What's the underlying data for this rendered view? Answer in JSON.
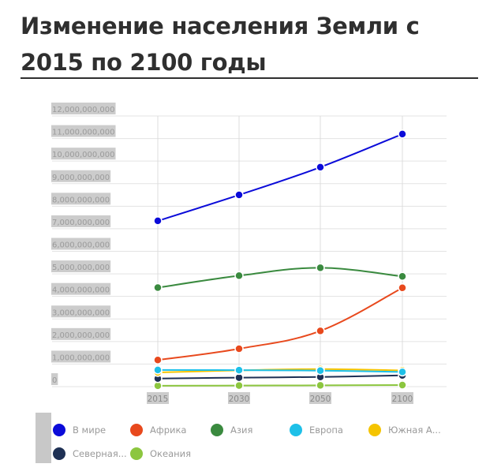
{
  "title": "Изменение населения Земли с 2015 по 2100 годы",
  "chart_data": {
    "type": "line",
    "title": "Изменение населения Земли с 2015 по 2100 годы",
    "categories": [
      "2015",
      "2030",
      "2050",
      "2100"
    ],
    "ylim": [
      0,
      12000000000
    ],
    "yticks": [
      "0",
      "1,000,000,000",
      "2,000,000,000",
      "3,000,000,000",
      "4,000,000,000",
      "5,000,000,000",
      "6,000,000,000",
      "7,000,000,000",
      "8,000,000,000",
      "9,000,000,000",
      "10,000,000,000",
      "11,000,000,000",
      "12,000,000,000"
    ],
    "grid": true,
    "legend_position": "bottom",
    "series": [
      {
        "name": "В мире",
        "color": "#0b0bd9",
        "values": [
          7350000000,
          8500000000,
          9730000000,
          11200000000
        ]
      },
      {
        "name": "Африка",
        "color": "#e8491d",
        "values": [
          1180000000,
          1680000000,
          2470000000,
          4380000000
        ]
      },
      {
        "name": "Азия",
        "color": "#3a8a3f",
        "values": [
          4390000000,
          4920000000,
          5270000000,
          4890000000
        ]
      },
      {
        "name": "Европа",
        "color": "#1ec0e8",
        "values": [
          740000000,
          730000000,
          710000000,
          650000000
        ]
      },
      {
        "name": "Южная А...",
        "color": "#f5c400",
        "values": [
          630000000,
          720000000,
          780000000,
          720000000
        ]
      },
      {
        "name": "Северная...",
        "color": "#1e3054",
        "values": [
          360000000,
          400000000,
          430000000,
          500000000
        ]
      },
      {
        "name": "Океания",
        "color": "#8cc63f",
        "values": [
          40000000,
          47000000,
          57000000,
          71000000
        ]
      }
    ]
  }
}
